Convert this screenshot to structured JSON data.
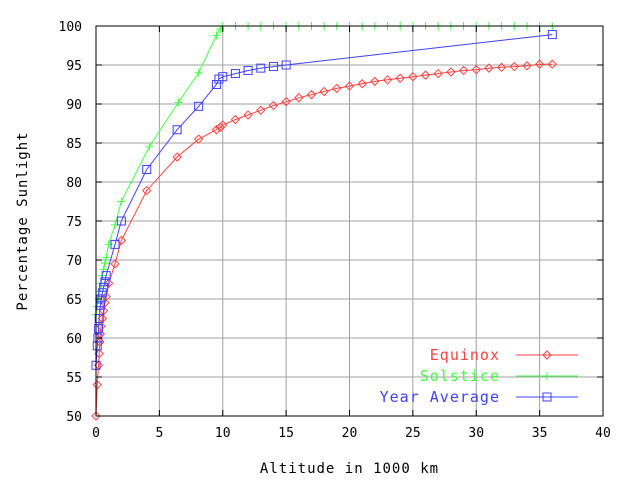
{
  "chart_data": {
    "type": "line",
    "title": "",
    "xlabel": "Altitude in 1000 km",
    "ylabel": "Percentage Sunlight",
    "xlim": [
      0,
      40
    ],
    "ylim": [
      50,
      100
    ],
    "x_ticks": [
      0,
      5,
      10,
      15,
      20,
      25,
      30,
      35,
      40
    ],
    "y_ticks": [
      50,
      55,
      60,
      65,
      70,
      75,
      80,
      85,
      90,
      95,
      100
    ],
    "grid": true,
    "legend_position": "bottom-right",
    "series": [
      {
        "name": "Equinox",
        "color": "#ff4040",
        "marker": "diamond",
        "x": [
          0.0,
          0.1,
          0.2,
          0.25,
          0.3,
          0.35,
          0.4,
          0.5,
          0.6,
          0.7,
          0.8,
          1.0,
          1.5,
          2.0,
          4.0,
          6.4,
          8.1,
          9.5,
          9.8,
          10.0,
          11.0,
          12.0,
          13.0,
          14.0,
          15.0,
          16.0,
          17.0,
          18.0,
          19.0,
          20.0,
          21.0,
          22.0,
          23.0,
          24.0,
          25.0,
          26.0,
          27.0,
          28.0,
          29.0,
          30.0,
          31.0,
          32.0,
          33.0,
          34.0,
          35.0,
          36.0
        ],
        "y": [
          50.0,
          54.0,
          56.5,
          58.0,
          59.5,
          60.5,
          61.5,
          62.5,
          63.5,
          64.5,
          65.3,
          67.0,
          69.5,
          72.5,
          78.9,
          83.2,
          85.5,
          86.7,
          87.0,
          87.3,
          88.0,
          88.6,
          89.2,
          89.8,
          90.3,
          90.8,
          91.2,
          91.6,
          92.0,
          92.3,
          92.6,
          92.9,
          93.1,
          93.3,
          93.5,
          93.7,
          93.9,
          94.1,
          94.3,
          94.4,
          94.6,
          94.7,
          94.8,
          94.9,
          95.1,
          95.1
        ]
      },
      {
        "name": "Solstice",
        "color": "#40ff40",
        "marker": "plus",
        "x": [
          0.0,
          0.1,
          0.2,
          0.3,
          0.4,
          0.5,
          0.6,
          0.7,
          0.8,
          1.0,
          1.5,
          2.0,
          4.2,
          6.5,
          8.1,
          9.5,
          9.8,
          10.0,
          11.0,
          12.0,
          13.0,
          14.0,
          15.0,
          16.0,
          17.0,
          18.0,
          19.0,
          20.0,
          21.0,
          22.0,
          23.0,
          24.0,
          25.0,
          26.0,
          27.0,
          28.0,
          29.0,
          30.0,
          31.0,
          32.0,
          33.0,
          34.0,
          35.0,
          36.0
        ],
        "y": [
          63.0,
          64.0,
          65.0,
          66.0,
          67.0,
          68.0,
          68.8,
          69.6,
          70.3,
          72.0,
          74.5,
          77.5,
          84.5,
          90.2,
          94.0,
          98.8,
          99.6,
          100.0,
          100.0,
          100.0,
          100.0,
          100.0,
          100.0,
          100.0,
          100.0,
          100.0,
          100.0,
          100.0,
          100.0,
          100.0,
          100.0,
          100.0,
          100.0,
          100.0,
          100.0,
          100.0,
          100.0,
          100.0,
          100.0,
          100.0,
          100.0,
          100.0,
          100.0,
          100.0
        ]
      },
      {
        "name": "Year Average",
        "color": "#4040ff",
        "marker": "square",
        "x": [
          0.0,
          0.1,
          0.15,
          0.2,
          0.25,
          0.3,
          0.35,
          0.4,
          0.5,
          0.6,
          0.7,
          0.8,
          1.5,
          2.0,
          4.0,
          6.4,
          8.1,
          9.5,
          9.7,
          10.0,
          11.0,
          12.0,
          13.0,
          14.0,
          15.0,
          36.0
        ],
        "y": [
          56.5,
          59.0,
          60.0,
          61.2,
          62.5,
          63.5,
          64.2,
          65.0,
          65.8,
          66.5,
          67.2,
          68.0,
          72.0,
          75.0,
          81.6,
          86.7,
          89.7,
          92.5,
          93.2,
          93.5,
          93.9,
          94.3,
          94.6,
          94.8,
          95.0,
          98.9
        ]
      }
    ]
  }
}
